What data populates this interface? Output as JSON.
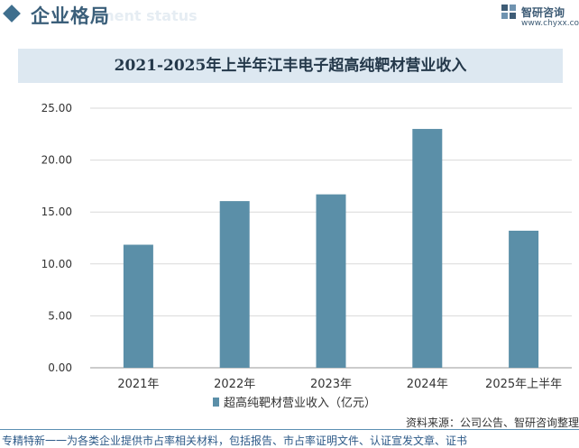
{
  "header": {
    "title": "企业格局",
    "subtitle": "ment status"
  },
  "logo": {
    "name": "智研咨询",
    "url": "www.chyxx.com"
  },
  "chart_data": {
    "type": "bar",
    "title": "2021-2025年上半年江丰电子超高纯靶材营业收入",
    "categories": [
      "2021年",
      "2022年",
      "2023年",
      "2024年",
      "2025年上半年"
    ],
    "series": [
      {
        "name": "超高纯靶材营业收入（亿元）",
        "values": [
          11.85,
          16.05,
          16.7,
          23.0,
          13.2
        ]
      }
    ],
    "ylim": [
      0,
      25
    ],
    "yticks": [
      "0.00",
      "5.00",
      "10.00",
      "15.00",
      "20.00",
      "25.00"
    ],
    "bar_color": "#5b8fa8",
    "grid": true,
    "legend_position": "bottom"
  },
  "footer": {
    "source": "资料来源：公司公告、智研咨询整理",
    "tagline": "专精特新一一为各类企业提供市占率相关材料，包括报告、市占率证明文件、认证宣发文章、证书"
  }
}
